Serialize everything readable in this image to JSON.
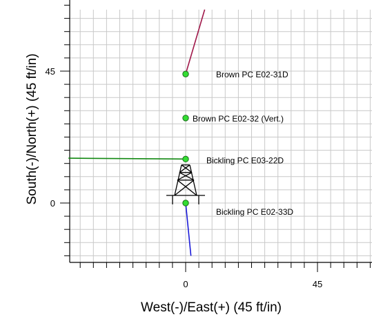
{
  "chart_data": {
    "type": "scatter",
    "title": "",
    "xlabel": "West(-)/East(+) (45 ft/in)",
    "ylabel": "South(-)/North(+) (45 ft/in)",
    "xlim": [
      -40,
      63
    ],
    "ylim": [
      -18,
      66
    ],
    "x_ticks": [
      0,
      45
    ],
    "y_ticks": [
      0,
      45
    ],
    "grid": true,
    "rig_symbol": "drilling-rig-icon",
    "wells": [
      {
        "label": "Brown PC E02-31D",
        "surface": {
          "x": 0,
          "y": 44
        },
        "path": [
          [
            0,
            44
          ],
          [
            6.5,
            66
          ]
        ],
        "color": "#a0184a"
      },
      {
        "label": "Brown PC E02-32 (Vert.)",
        "surface": {
          "x": 0,
          "y": 29
        },
        "path": [],
        "color": ""
      },
      {
        "label": "Bickling PC E03-22D",
        "surface": {
          "x": 0,
          "y": 15
        },
        "path": [
          [
            0,
            15
          ],
          [
            -40,
            15.3
          ]
        ],
        "color": "#118811"
      },
      {
        "label": "Bickling PC E02-33D",
        "surface": {
          "x": 0,
          "y": 0
        },
        "path": [
          [
            0,
            0
          ],
          [
            1.8,
            -18
          ]
        ],
        "color": "#1a1ad8"
      }
    ],
    "marker_color": "#33dd33"
  }
}
